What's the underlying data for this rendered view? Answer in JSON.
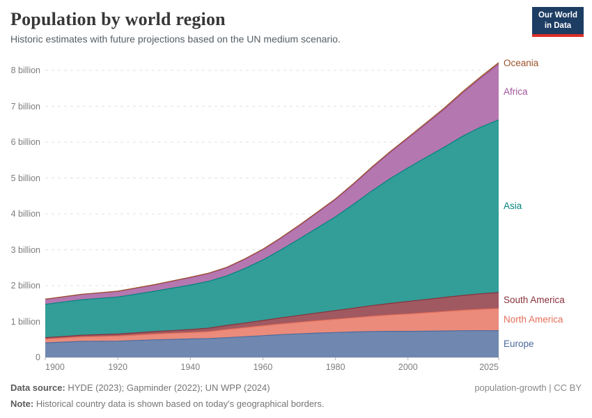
{
  "header": {
    "title": "Population by world region",
    "subtitle": "Historic estimates with future projections based on the UN medium scenario.",
    "logo": {
      "line1": "Our World",
      "line2": "in Data",
      "bg_color": "#1d3d63",
      "accent_color": "#dc2f27"
    }
  },
  "chart_data": {
    "type": "area",
    "stacked": true,
    "title": "Population by world region",
    "subtitle": "Historic estimates with future projections based on the UN medium scenario.",
    "xlabel": "",
    "ylabel": "",
    "xlim": [
      1900,
      2025
    ],
    "ylim": [
      0,
      8.6
    ],
    "grid": "dashed-horizontal",
    "x": [
      1900,
      1910,
      1920,
      1930,
      1940,
      1945,
      1950,
      1955,
      1960,
      1965,
      1970,
      1975,
      1980,
      1985,
      1990,
      1995,
      2000,
      2005,
      2010,
      2015,
      2020,
      2025
    ],
    "x_ticks": [
      1900,
      1920,
      1940,
      1960,
      1980,
      2000,
      2025
    ],
    "y_ticks": [
      {
        "value": 0,
        "label": "0"
      },
      {
        "value": 1,
        "label": "1 billion"
      },
      {
        "value": 2,
        "label": "2 billion"
      },
      {
        "value": 3,
        "label": "3 billion"
      },
      {
        "value": 4,
        "label": "4 billion"
      },
      {
        "value": 5,
        "label": "5 billion"
      },
      {
        "value": 6,
        "label": "6 billion"
      },
      {
        "value": 7,
        "label": "7 billion"
      },
      {
        "value": 8,
        "label": "8 billion"
      }
    ],
    "unit": "billion",
    "legend_position": "right-edge-labels",
    "series": [
      {
        "name": "Europe",
        "color": "#4c6a9c",
        "fill": "#7088b0",
        "values": [
          0.406,
          0.447,
          0.453,
          0.489,
          0.515,
          0.525,
          0.55,
          0.576,
          0.606,
          0.635,
          0.657,
          0.677,
          0.694,
          0.708,
          0.722,
          0.727,
          0.727,
          0.73,
          0.736,
          0.743,
          0.746,
          0.744
        ]
      },
      {
        "name": "North America",
        "color": "#e56e5a",
        "fill": "#ea8b7b",
        "values": [
          0.104,
          0.123,
          0.142,
          0.162,
          0.178,
          0.192,
          0.227,
          0.251,
          0.276,
          0.298,
          0.32,
          0.344,
          0.368,
          0.395,
          0.423,
          0.453,
          0.482,
          0.512,
          0.542,
          0.57,
          0.594,
          0.618
        ]
      },
      {
        "name": "South America",
        "color": "#883039",
        "fill": "#a05961",
        "values": [
          0.039,
          0.048,
          0.056,
          0.068,
          0.084,
          0.098,
          0.114,
          0.13,
          0.148,
          0.169,
          0.193,
          0.217,
          0.242,
          0.269,
          0.297,
          0.324,
          0.35,
          0.373,
          0.394,
          0.414,
          0.432,
          0.443
        ]
      },
      {
        "name": "Asia",
        "color": "#00847e",
        "fill": "#339d98",
        "values": [
          0.931,
          0.99,
          1.033,
          1.124,
          1.241,
          1.305,
          1.379,
          1.521,
          1.686,
          1.898,
          2.131,
          2.372,
          2.613,
          2.897,
          3.194,
          3.475,
          3.724,
          3.959,
          4.187,
          4.434,
          4.645,
          4.815
        ]
      },
      {
        "name": "Africa",
        "color": "#a2559c",
        "fill": "#b577b0",
        "values": [
          0.138,
          0.145,
          0.154,
          0.175,
          0.205,
          0.216,
          0.228,
          0.254,
          0.285,
          0.322,
          0.366,
          0.419,
          0.481,
          0.554,
          0.638,
          0.724,
          0.819,
          0.931,
          1.055,
          1.201,
          1.361,
          1.551
        ]
      },
      {
        "name": "Oceania",
        "color": "#9a5129",
        "fill": "#ae7454",
        "values": [
          0.006,
          0.007,
          0.009,
          0.01,
          0.011,
          0.012,
          0.013,
          0.015,
          0.016,
          0.018,
          0.02,
          0.021,
          0.023,
          0.025,
          0.027,
          0.029,
          0.031,
          0.034,
          0.037,
          0.04,
          0.044,
          0.046
        ]
      }
    ]
  },
  "footer": {
    "source_label": "Data source:",
    "source_value": "HYDE (2023); Gapminder (2022); UN WPP (2024)",
    "note_label": "Note:",
    "note_value": "Historical country data is shown based on today's geographical borders.",
    "link_text": "population-growth | CC BY"
  }
}
